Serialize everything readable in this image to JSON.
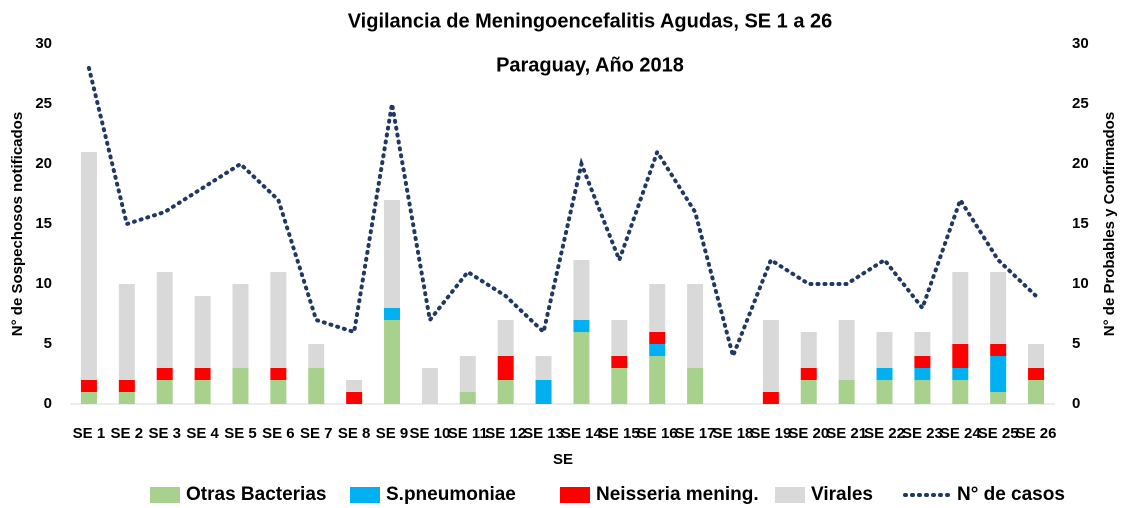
{
  "chart_data": {
    "type": "bar",
    "stacked": true,
    "title": "Vigilancia de Meningoencefalitis Agudas, SE 1 a 26",
    "subtitle": "Paraguay, Año 2018",
    "x_label": "SE",
    "y_label": "N° de Sospechosos notificados",
    "y2_label": "N° de Probables y Confirmados",
    "categories": [
      "SE 1",
      "SE 2",
      "SE 3",
      "SE 4",
      "SE 5",
      "SE 6",
      "SE 7",
      "SE 8",
      "SE 9",
      "SE 10",
      "SE 11",
      "SE 12",
      "SE 13",
      "SE 14",
      "SE 15",
      "SE 16",
      "SE 17",
      "SE 18",
      "SE 19",
      "SE 20",
      "SE 21",
      "SE 22",
      "SE 23",
      "SE 24",
      "SE 25",
      "SE 26"
    ],
    "series": [
      {
        "name": "Otras Bacterias",
        "color": "#a9d18e",
        "values": [
          1,
          1,
          2,
          2,
          3,
          2,
          3,
          0,
          7,
          0,
          1,
          2,
          0,
          6,
          3,
          4,
          3,
          0,
          0,
          2,
          2,
          2,
          2,
          2,
          1,
          2
        ]
      },
      {
        "name": "S.pneumoniae",
        "color": "#00b0f0",
        "values": [
          0,
          0,
          0,
          0,
          0,
          0,
          0,
          0,
          1,
          0,
          0,
          0,
          2,
          1,
          0,
          1,
          0,
          0,
          0,
          0,
          0,
          1,
          1,
          1,
          3,
          0
        ]
      },
      {
        "name": "Neisseria mening.",
        "color": "#ff0000",
        "values": [
          1,
          1,
          1,
          1,
          0,
          1,
          0,
          1,
          0,
          0,
          0,
          2,
          0,
          0,
          1,
          1,
          0,
          0,
          1,
          1,
          0,
          0,
          1,
          2,
          1,
          1
        ]
      },
      {
        "name": "Virales",
        "color": "#d9d9d9",
        "values": [
          19,
          8,
          8,
          6,
          7,
          8,
          2,
          1,
          9,
          3,
          3,
          3,
          2,
          5,
          3,
          4,
          7,
          0,
          6,
          3,
          5,
          3,
          2,
          6,
          6,
          2
        ]
      },
      {
        "name": "N° de casos",
        "type": "line",
        "axis": "y2",
        "color": "#1f3864",
        "values": [
          28,
          15,
          16,
          18,
          20,
          17,
          7,
          6,
          25,
          7,
          11,
          9,
          6,
          20,
          12,
          21,
          16,
          4,
          12,
          10,
          10,
          12,
          8,
          17,
          12,
          9
        ]
      }
    ],
    "ylim": [
      0,
      30
    ],
    "yticks": [
      0,
      5,
      10,
      15,
      20,
      25,
      30
    ],
    "y2lim": [
      0,
      30
    ],
    "y2ticks": [
      0,
      5,
      10,
      15,
      20,
      25,
      30
    ],
    "legend": "bottom"
  }
}
